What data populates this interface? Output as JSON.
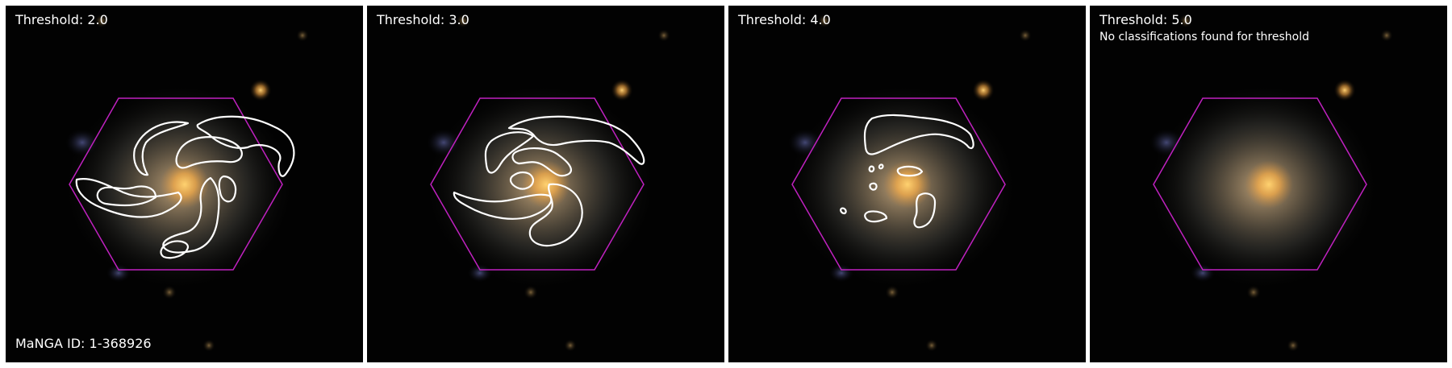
{
  "galaxy": {
    "manga_id_label": "MaNGA ID: 1-368926"
  },
  "colors": {
    "background": "#000000",
    "hexagon": "#c021c0",
    "contour": "#ffffff",
    "text": "#ffffff"
  },
  "panels": [
    {
      "title": "Threshold: 2.0",
      "note": ""
    },
    {
      "title": "Threshold: 3.0",
      "note": ""
    },
    {
      "title": "Threshold: 4.0",
      "note": ""
    },
    {
      "title": "Threshold: 5.0",
      "note": "No classifications found for threshold"
    }
  ]
}
